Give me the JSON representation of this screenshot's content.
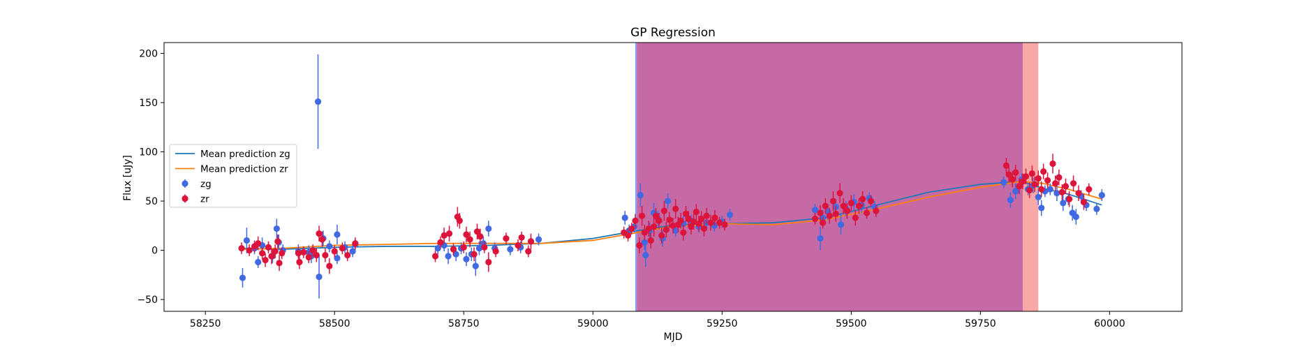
{
  "chart_data": {
    "type": "scatter",
    "title": "GP Regression",
    "xlabel": "MJD",
    "ylabel": "Flux [uJy]",
    "xlim": [
      58170,
      60140
    ],
    "ylim": [
      -62,
      211
    ],
    "xticks": [
      58250,
      58500,
      58750,
      59000,
      59250,
      59500,
      59750,
      60000
    ],
    "yticks": [
      -50,
      0,
      50,
      100,
      150,
      200
    ],
    "grid": false,
    "legend_placement": "center-left",
    "legend": [
      "Mean prediction zg",
      "Mean prediction zr",
      "zg",
      "zr"
    ],
    "shaded_regions": [
      {
        "x0": 59082,
        "x1": 59085,
        "color": "#6b8ff0",
        "opacity": 0.85
      },
      {
        "x0": 59085,
        "x1": 59832,
        "color": "#c66aa5",
        "opacity": 1.0
      },
      {
        "x0": 59832,
        "x1": 59862,
        "color": "#f8a8a6",
        "opacity": 1.0
      }
    ],
    "series": [
      {
        "name": "Mean prediction zg",
        "kind": "line",
        "color": "#1f77b4",
        "points": [
          [
            58320,
            2
          ],
          [
            58400,
            1
          ],
          [
            58500,
            3
          ],
          [
            58600,
            4
          ],
          [
            58700,
            4
          ],
          [
            58800,
            5
          ],
          [
            58900,
            7
          ],
          [
            59000,
            12
          ],
          [
            59075,
            19
          ],
          [
            59150,
            25
          ],
          [
            59250,
            27
          ],
          [
            59350,
            28
          ],
          [
            59450,
            33
          ],
          [
            59550,
            46
          ],
          [
            59650,
            59
          ],
          [
            59750,
            67
          ],
          [
            59830,
            70
          ],
          [
            59870,
            63
          ],
          [
            59920,
            57
          ],
          [
            59985,
            46
          ]
        ]
      },
      {
        "name": "Mean prediction zr",
        "kind": "line",
        "color": "#ff7f0e",
        "points": [
          [
            58320,
            1
          ],
          [
            58400,
            2
          ],
          [
            58500,
            5
          ],
          [
            58600,
            6
          ],
          [
            58700,
            7
          ],
          [
            58800,
            7
          ],
          [
            58900,
            7
          ],
          [
            59000,
            10
          ],
          [
            59075,
            17
          ],
          [
            59150,
            24
          ],
          [
            59250,
            27
          ],
          [
            59350,
            26
          ],
          [
            59450,
            31
          ],
          [
            59550,
            42
          ],
          [
            59650,
            54
          ],
          [
            59750,
            64
          ],
          [
            59830,
            70
          ],
          [
            59870,
            68
          ],
          [
            59920,
            62
          ],
          [
            59985,
            52
          ]
        ]
      },
      {
        "name": "zg",
        "kind": "errorbar",
        "color": "#4169e1",
        "points": [
          [
            58322,
            -28,
            10
          ],
          [
            58330,
            10,
            13
          ],
          [
            58345,
            2,
            6
          ],
          [
            58352,
            -12,
            6
          ],
          [
            58360,
            5,
            8
          ],
          [
            58372,
            3,
            6
          ],
          [
            58380,
            -6,
            7
          ],
          [
            58388,
            22,
            10
          ],
          [
            58392,
            8,
            8
          ],
          [
            58400,
            0,
            6
          ],
          [
            58430,
            -1,
            7
          ],
          [
            58450,
            -2,
            7
          ],
          [
            58455,
            -6,
            7
          ],
          [
            58468,
            151,
            48
          ],
          [
            58470,
            -27,
            22
          ],
          [
            58478,
            12,
            8
          ],
          [
            58490,
            4,
            6
          ],
          [
            58505,
            -8,
            6
          ],
          [
            58505,
            16,
            10
          ],
          [
            58520,
            3,
            6
          ],
          [
            58535,
            -1,
            6
          ],
          [
            58540,
            6,
            6
          ],
          [
            58700,
            2,
            6
          ],
          [
            58712,
            5,
            6
          ],
          [
            58720,
            -6,
            8
          ],
          [
            58735,
            -4,
            7
          ],
          [
            58745,
            2,
            6
          ],
          [
            58755,
            -9,
            7
          ],
          [
            58765,
            -4,
            7
          ],
          [
            58773,
            -16,
            10
          ],
          [
            58780,
            2,
            7
          ],
          [
            58788,
            7,
            7
          ],
          [
            58798,
            22,
            8
          ],
          [
            58810,
            2,
            6
          ],
          [
            58840,
            1,
            6
          ],
          [
            58860,
            3,
            6
          ],
          [
            58880,
            9,
            6
          ],
          [
            58895,
            11,
            6
          ],
          [
            59062,
            33,
            7
          ],
          [
            59070,
            20,
            6
          ],
          [
            59080,
            24,
            6
          ],
          [
            59092,
            56,
            12
          ],
          [
            59100,
            8,
            8
          ],
          [
            59102,
            -5,
            12
          ],
          [
            59110,
            20,
            8
          ],
          [
            59118,
            38,
            10
          ],
          [
            59126,
            32,
            8
          ],
          [
            59135,
            12,
            8
          ],
          [
            59145,
            50,
            8
          ],
          [
            59160,
            20,
            6
          ],
          [
            59175,
            27,
            8
          ],
          [
            59190,
            30,
            6
          ],
          [
            59205,
            24,
            6
          ],
          [
            59220,
            28,
            6
          ],
          [
            59235,
            25,
            6
          ],
          [
            59250,
            29,
            6
          ],
          [
            59265,
            36,
            6
          ],
          [
            59430,
            41,
            6
          ],
          [
            59440,
            12,
            12
          ],
          [
            59445,
            33,
            8
          ],
          [
            59455,
            39,
            8
          ],
          [
            59470,
            44,
            8
          ],
          [
            59480,
            26,
            10
          ],
          [
            59490,
            42,
            8
          ],
          [
            59505,
            49,
            8
          ],
          [
            59520,
            46,
            8
          ],
          [
            59535,
            53,
            6
          ],
          [
            59545,
            44,
            6
          ],
          [
            59795,
            69,
            6
          ],
          [
            59808,
            51,
            8
          ],
          [
            59818,
            60,
            8
          ],
          [
            59830,
            72,
            6
          ],
          [
            59842,
            62,
            6
          ],
          [
            59852,
            66,
            8
          ],
          [
            59862,
            54,
            8
          ],
          [
            59868,
            43,
            8
          ],
          [
            59875,
            60,
            6
          ],
          [
            59885,
            62,
            6
          ],
          [
            59898,
            58,
            8
          ],
          [
            59910,
            48,
            8
          ],
          [
            59920,
            52,
            6
          ],
          [
            59928,
            38,
            8
          ],
          [
            59935,
            34,
            8
          ],
          [
            59945,
            55,
            6
          ],
          [
            59955,
            46,
            6
          ],
          [
            59975,
            42,
            6
          ],
          [
            59985,
            56,
            6
          ]
        ]
      },
      {
        "name": "zr",
        "kind": "errorbar",
        "color": "#dc143c",
        "points": [
          [
            58320,
            2,
            6
          ],
          [
            58335,
            0,
            6
          ],
          [
            58345,
            4,
            6
          ],
          [
            58352,
            7,
            7
          ],
          [
            58360,
            -3,
            6
          ],
          [
            58366,
            -10,
            7
          ],
          [
            58372,
            3,
            6
          ],
          [
            58378,
            -6,
            8
          ],
          [
            58385,
            -1,
            7
          ],
          [
            58390,
            9,
            7
          ],
          [
            58393,
            -13,
            8
          ],
          [
            58398,
            -3,
            6
          ],
          [
            58430,
            -3,
            6
          ],
          [
            58432,
            -12,
            7
          ],
          [
            58440,
            -2,
            6
          ],
          [
            58450,
            -7,
            6
          ],
          [
            58458,
            0,
            6
          ],
          [
            58465,
            -5,
            7
          ],
          [
            58470,
            17,
            8
          ],
          [
            58476,
            11,
            8
          ],
          [
            58482,
            -5,
            7
          ],
          [
            58490,
            -16,
            8
          ],
          [
            58500,
            -1,
            6
          ],
          [
            58515,
            2,
            6
          ],
          [
            58525,
            -5,
            6
          ],
          [
            58540,
            7,
            6
          ],
          [
            58695,
            -6,
            6
          ],
          [
            58705,
            8,
            6
          ],
          [
            58712,
            15,
            8
          ],
          [
            58722,
            17,
            8
          ],
          [
            58730,
            1,
            6
          ],
          [
            58738,
            34,
            10
          ],
          [
            58742,
            30,
            8
          ],
          [
            58750,
            3,
            6
          ],
          [
            58755,
            16,
            8
          ],
          [
            58762,
            11,
            8
          ],
          [
            58770,
            -4,
            7
          ],
          [
            58776,
            19,
            8
          ],
          [
            58782,
            14,
            8
          ],
          [
            58790,
            3,
            6
          ],
          [
            58798,
            -12,
            10
          ],
          [
            58812,
            -1,
            6
          ],
          [
            58832,
            12,
            6
          ],
          [
            58855,
            5,
            6
          ],
          [
            58862,
            13,
            6
          ],
          [
            58875,
            -1,
            6
          ],
          [
            58880,
            9,
            8
          ],
          [
            59060,
            18,
            6
          ],
          [
            59068,
            15,
            6
          ],
          [
            59075,
            22,
            6
          ],
          [
            59082,
            30,
            7
          ],
          [
            59090,
            5,
            8
          ],
          [
            59095,
            35,
            10
          ],
          [
            59100,
            18,
            8
          ],
          [
            59108,
            22,
            8
          ],
          [
            59112,
            10,
            8
          ],
          [
            59118,
            24,
            10
          ],
          [
            59122,
            35,
            8
          ],
          [
            59128,
            30,
            8
          ],
          [
            59133,
            15,
            8
          ],
          [
            59138,
            40,
            10
          ],
          [
            59142,
            21,
            8
          ],
          [
            59148,
            31,
            8
          ],
          [
            59155,
            25,
            8
          ],
          [
            59160,
            42,
            10
          ],
          [
            59165,
            26,
            8
          ],
          [
            59170,
            30,
            8
          ],
          [
            59175,
            18,
            8
          ],
          [
            59180,
            37,
            8
          ],
          [
            59185,
            32,
            8
          ],
          [
            59190,
            24,
            8
          ],
          [
            59195,
            29,
            8
          ],
          [
            59200,
            39,
            8
          ],
          [
            59205,
            27,
            8
          ],
          [
            59210,
            32,
            8
          ],
          [
            59215,
            22,
            8
          ],
          [
            59220,
            35,
            8
          ],
          [
            59228,
            28,
            8
          ],
          [
            59236,
            33,
            8
          ],
          [
            59245,
            28,
            6
          ],
          [
            59255,
            26,
            6
          ],
          [
            59430,
            32,
            6
          ],
          [
            59440,
            38,
            8
          ],
          [
            59445,
            28,
            6
          ],
          [
            59450,
            45,
            8
          ],
          [
            59458,
            35,
            8
          ],
          [
            59465,
            50,
            10
          ],
          [
            59470,
            37,
            8
          ],
          [
            59478,
            58,
            10
          ],
          [
            59485,
            45,
            8
          ],
          [
            59492,
            40,
            8
          ],
          [
            59500,
            48,
            8
          ],
          [
            59508,
            33,
            8
          ],
          [
            59515,
            45,
            8
          ],
          [
            59522,
            52,
            8
          ],
          [
            59530,
            38,
            6
          ],
          [
            59538,
            50,
            6
          ],
          [
            59548,
            40,
            6
          ],
          [
            59800,
            86,
            8
          ],
          [
            59805,
            77,
            8
          ],
          [
            59812,
            72,
            8
          ],
          [
            59818,
            79,
            8
          ],
          [
            59825,
            65,
            8
          ],
          [
            59832,
            70,
            8
          ],
          [
            59838,
            75,
            8
          ],
          [
            59845,
            61,
            8
          ],
          [
            59850,
            78,
            8
          ],
          [
            59855,
            67,
            8
          ],
          [
            59862,
            73,
            8
          ],
          [
            59868,
            62,
            8
          ],
          [
            59872,
            80,
            8
          ],
          [
            59880,
            71,
            8
          ],
          [
            59890,
            88,
            10
          ],
          [
            59895,
            68,
            8
          ],
          [
            59902,
            74,
            8
          ],
          [
            59908,
            59,
            8
          ],
          [
            59915,
            65,
            8
          ],
          [
            59922,
            52,
            8
          ],
          [
            59930,
            68,
            8
          ],
          [
            59940,
            58,
            8
          ],
          [
            59950,
            49,
            8
          ],
          [
            59960,
            62,
            6
          ]
        ]
      }
    ]
  }
}
